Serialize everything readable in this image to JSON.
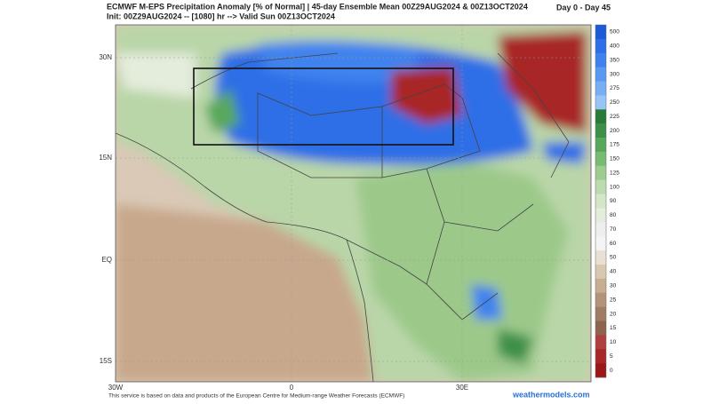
{
  "header": {
    "title": "ECMWF M-EPS Precipitation Anomaly [% of Normal] | 45-day Ensemble Mean 00Z29AUG2024 & 00Z13OCT2024",
    "subtitle": "Init: 00Z29AUG2024 -- [1080] hr --> Valid Sun 00Z13OCT2024",
    "period": "Day 0 - Day 45"
  },
  "map": {
    "lat_labels": [
      "30N",
      "15N",
      "EQ",
      "15S"
    ],
    "lon_labels": [
      "30W",
      "0",
      "30E"
    ]
  },
  "colorbar": {
    "levels": [
      500,
      400,
      350,
      300,
      275,
      250,
      225,
      200,
      175,
      150,
      125,
      100,
      90,
      80,
      70,
      60,
      50,
      40,
      30,
      25,
      20,
      15,
      10,
      5,
      0
    ],
    "colors": [
      "#1e5ad8",
      "#2e6ee6",
      "#3f82ee",
      "#5a98f2",
      "#78aef4",
      "#98c4f6",
      "#2a7a3a",
      "#3c9048",
      "#58a85c",
      "#78bc74",
      "#9ccc90",
      "#bcdcb0",
      "#d4e6c8",
      "#e4ecdc",
      "#eeeeee",
      "#f4f4f4",
      "#e8e0d4",
      "#d8c8b0",
      "#c8ae90",
      "#b49478",
      "#a07c64",
      "#8c6450",
      "#b04040",
      "#a82828",
      "#9a1818"
    ]
  },
  "footer": {
    "credit": "This service is based on data and products of the European Centre for Medium-range Weather Forecasts (ECMWF)",
    "site": "weathermodels.com"
  }
}
